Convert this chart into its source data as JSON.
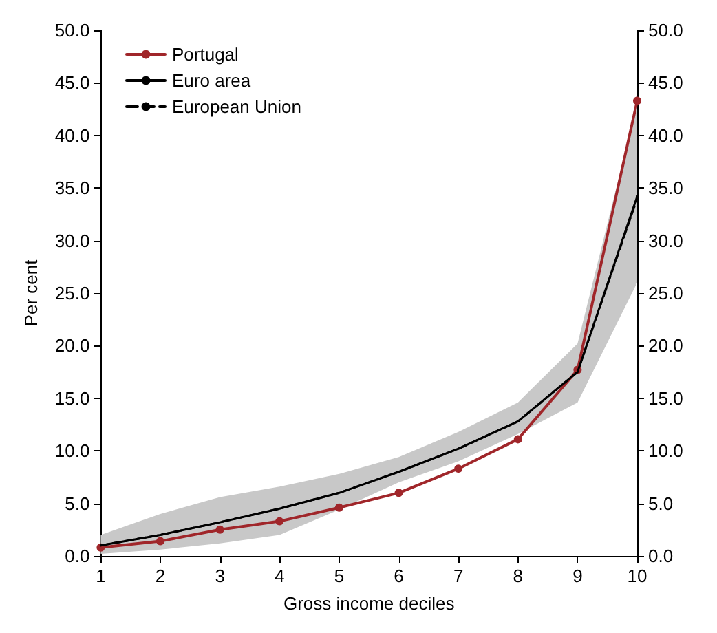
{
  "chart_data": {
    "type": "line",
    "xlabel": "Gross income deciles",
    "ylabel": "Per cent",
    "x": [
      1,
      2,
      3,
      4,
      5,
      6,
      7,
      8,
      9,
      10
    ],
    "xlim": [
      1,
      10
    ],
    "xticks": [
      1,
      2,
      3,
      4,
      5,
      6,
      7,
      8,
      9,
      10
    ],
    "ylim": [
      0,
      50
    ],
    "yticks": [
      {
        "value": 0,
        "label": "0.0"
      },
      {
        "value": 5,
        "label": "5.0"
      },
      {
        "value": 10,
        "label": "10.0"
      },
      {
        "value": 15,
        "label": "15.0"
      },
      {
        "value": 20,
        "label": "20.0"
      },
      {
        "value": 25,
        "label": "25.0"
      },
      {
        "value": 30,
        "label": "30.0"
      },
      {
        "value": 35,
        "label": "35.0"
      },
      {
        "value": 40,
        "label": "40.0"
      },
      {
        "value": 45,
        "label": "45.0"
      },
      {
        "value": 50,
        "label": "50.0"
      }
    ],
    "y2lim": [
      0,
      50
    ],
    "y2ticks": [
      {
        "value": 0,
        "label": "0.0"
      },
      {
        "value": 5,
        "label": "5.0"
      },
      {
        "value": 10,
        "label": "10.0"
      },
      {
        "value": 15,
        "label": "15.0"
      },
      {
        "value": 20,
        "label": "20.0"
      },
      {
        "value": 25,
        "label": "25.0"
      },
      {
        "value": 30,
        "label": "30.0"
      },
      {
        "value": 35,
        "label": "35.0"
      },
      {
        "value": 40,
        "label": "40.0"
      },
      {
        "value": 45,
        "label": "45.0"
      },
      {
        "value": 50,
        "label": "50.0"
      }
    ],
    "grid": false,
    "legend": "top left",
    "series": [
      {
        "name": "Portugal",
        "color": "#a0262a",
        "marker": "circle",
        "line_style": "solid",
        "values": [
          0.8,
          1.4,
          2.5,
          3.3,
          4.6,
          6.0,
          8.3,
          11.1,
          17.7,
          43.3
        ]
      },
      {
        "name": "Euro area",
        "color": "#000000",
        "marker": "none",
        "line_style": "solid",
        "values": [
          1.0,
          2.0,
          3.2,
          4.5,
          6.0,
          8.0,
          10.2,
          12.8,
          17.5,
          34.2
        ],
        "lower": [
          0.2,
          0.6,
          1.2,
          2.0,
          4.4,
          7.0,
          9.0,
          11.6,
          14.6,
          26.0
        ],
        "upper": [
          2.0,
          4.0,
          5.6,
          6.6,
          7.8,
          9.4,
          11.8,
          14.6,
          20.2,
          43.0
        ]
      },
      {
        "name": "European Union",
        "color": "#000000",
        "marker": "none",
        "line_style": "dashed",
        "values": [
          1.0,
          2.0,
          3.2,
          4.5,
          6.0,
          8.0,
          10.2,
          12.8,
          17.5,
          34.0
        ]
      }
    ]
  }
}
